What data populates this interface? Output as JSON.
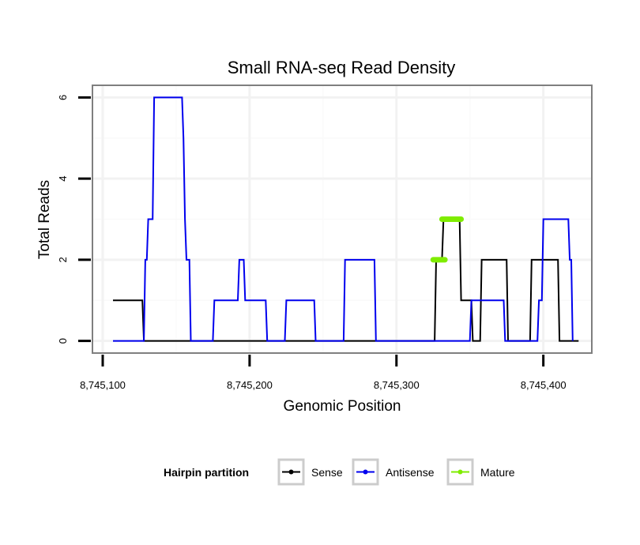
{
  "chart_data": {
    "type": "line",
    "title": "Small RNA-seq Read Density",
    "xlabel": "Genomic Position",
    "ylabel": "Total Reads",
    "xlim": [
      8745093,
      8745433
    ],
    "ylim": [
      -0.3,
      6.3
    ],
    "x_ticks": [
      {
        "value": 8745100,
        "label": "8,745,100"
      },
      {
        "value": 8745200,
        "label": "8,745,200"
      },
      {
        "value": 8745300,
        "label": "8,745,300"
      },
      {
        "value": 8745400,
        "label": "8,745,400"
      }
    ],
    "y_ticks": [
      {
        "value": 0,
        "label": "0"
      },
      {
        "value": 2,
        "label": "2"
      },
      {
        "value": 4,
        "label": "4"
      },
      {
        "value": 6,
        "label": "6"
      }
    ],
    "grid": true,
    "legend": {
      "title": "Hairpin partition",
      "position": "bottom"
    },
    "series": [
      {
        "name": "Sense",
        "color": "#000000",
        "line_width": 2,
        "points": [
          [
            8745107,
            1
          ],
          [
            8745127,
            1
          ],
          [
            8745128,
            0
          ],
          [
            8745326,
            0
          ],
          [
            8745327,
            2
          ],
          [
            8745331,
            2
          ],
          [
            8745332,
            3
          ],
          [
            8745343,
            3
          ],
          [
            8745344,
            1
          ],
          [
            8745351,
            1
          ],
          [
            8745352,
            0
          ],
          [
            8745357,
            0
          ],
          [
            8745358,
            2
          ],
          [
            8745375,
            2
          ],
          [
            8745376,
            0
          ],
          [
            8745391,
            0
          ],
          [
            8745392,
            2
          ],
          [
            8745410,
            2
          ],
          [
            8745411,
            0
          ],
          [
            8745424,
            0
          ]
        ]
      },
      {
        "name": "Antisense",
        "color": "#0000ee",
        "line_width": 2,
        "points": [
          [
            8745107,
            0
          ],
          [
            8745128,
            0
          ],
          [
            8745129,
            2
          ],
          [
            8745130,
            2
          ],
          [
            8745131,
            3
          ],
          [
            8745134,
            3
          ],
          [
            8745135,
            6
          ],
          [
            8745154,
            6
          ],
          [
            8745155,
            5
          ],
          [
            8745156,
            3
          ],
          [
            8745157,
            2
          ],
          [
            8745159,
            2
          ],
          [
            8745160,
            0
          ],
          [
            8745175,
            0
          ],
          [
            8745176,
            1
          ],
          [
            8745192,
            1
          ],
          [
            8745193,
            2
          ],
          [
            8745196,
            2
          ],
          [
            8745197,
            1
          ],
          [
            8745211,
            1
          ],
          [
            8745212,
            0
          ],
          [
            8745224,
            0
          ],
          [
            8745225,
            1
          ],
          [
            8745244,
            1
          ],
          [
            8745245,
            0
          ],
          [
            8745264,
            0
          ],
          [
            8745265,
            2
          ],
          [
            8745285,
            2
          ],
          [
            8745286,
            0
          ],
          [
            8745350,
            0
          ],
          [
            8745351,
            1
          ],
          [
            8745373,
            1
          ],
          [
            8745374,
            0
          ],
          [
            8745396,
            0
          ],
          [
            8745397,
            1
          ],
          [
            8745399,
            1
          ],
          [
            8745400,
            3
          ],
          [
            8745417,
            3
          ],
          [
            8745418,
            2
          ],
          [
            8745419,
            2
          ],
          [
            8745420,
            0
          ]
        ]
      },
      {
        "name": "Mature",
        "color": "#7fec00",
        "line_width": 7,
        "segments": [
          [
            [
              8745325,
              2
            ],
            [
              8745333,
              2
            ]
          ],
          [
            [
              8745331,
              3
            ],
            [
              8745344,
              3
            ]
          ]
        ]
      }
    ]
  }
}
